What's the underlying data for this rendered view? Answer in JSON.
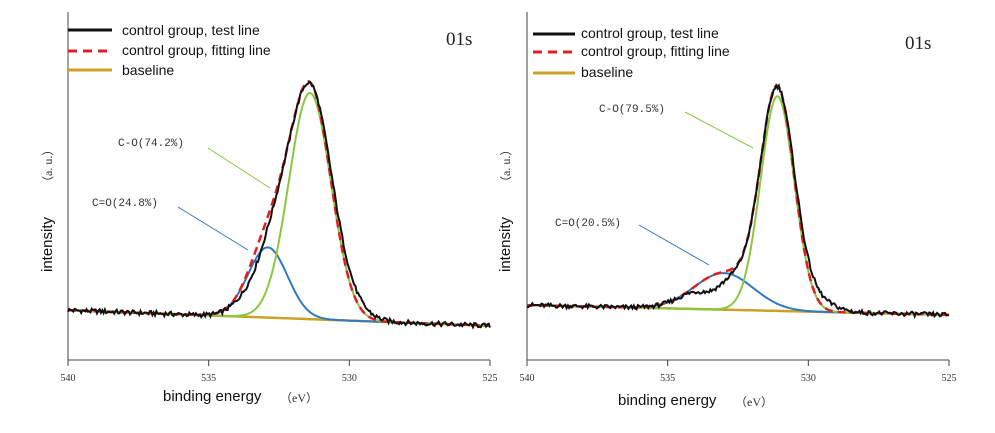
{
  "chart_data": [
    {
      "type": "line",
      "corner_label": "01s",
      "xlabel": "binding energy",
      "xlabel_unit": "（eV）",
      "ylabel": "intensity",
      "ylabel_unit": "（a. u.）",
      "xlim": [
        540,
        525
      ],
      "x_ticks": [
        540,
        535,
        530,
        525
      ],
      "legend": [
        {
          "label": "control group, test line",
          "color": "#111111",
          "style": "solid"
        },
        {
          "label": "control group, fitting line",
          "color": "#e02020",
          "style": "dashed"
        },
        {
          "label": "baseline",
          "color": "#c9a227",
          "style": "solid"
        }
      ],
      "annotations": [
        {
          "text": "C-O(74.2%)",
          "color": "#8cc63f"
        },
        {
          "text": "C=O(24.8%)",
          "color": "#2f78c4"
        }
      ],
      "peaks": [
        {
          "name": "C-O",
          "center_eV": 531.4,
          "height": 0.87,
          "sigma_eV": 0.75,
          "color": "#8cc63f"
        },
        {
          "name": "C=O",
          "center_eV": 532.9,
          "height": 0.27,
          "sigma_eV": 0.7,
          "color": "#2f78c4"
        }
      ],
      "baseline": {
        "start": 0.03,
        "end": -0.03
      }
    },
    {
      "type": "line",
      "corner_label": "01s",
      "xlabel": "binding energy",
      "xlabel_unit": "（eV）",
      "ylabel": "intensity",
      "ylabel_unit": "（a. u.）",
      "xlim": [
        540,
        525
      ],
      "x_ticks": [
        540,
        535,
        530,
        525
      ],
      "legend": [
        {
          "label": "control group, test line",
          "color": "#111111",
          "style": "solid"
        },
        {
          "label": "control group, fitting line",
          "color": "#e02020",
          "style": "dashed"
        },
        {
          "label": "baseline",
          "color": "#c9a227",
          "style": "solid"
        }
      ],
      "annotations": [
        {
          "text": "C-O(79.5%)",
          "color": "#8cc63f"
        },
        {
          "text": "C=O(20.5%)",
          "color": "#2f78c4"
        }
      ],
      "peaks": [
        {
          "name": "C-O",
          "center_eV": 531.1,
          "height": 0.88,
          "sigma_eV": 0.6,
          "color": "#8cc63f"
        },
        {
          "name": "C=O",
          "center_eV": 533.0,
          "height": 0.15,
          "sigma_eV": 1.05,
          "color": "#2f78c4"
        }
      ],
      "baseline": {
        "start": 0.02,
        "end": -0.02
      }
    }
  ]
}
